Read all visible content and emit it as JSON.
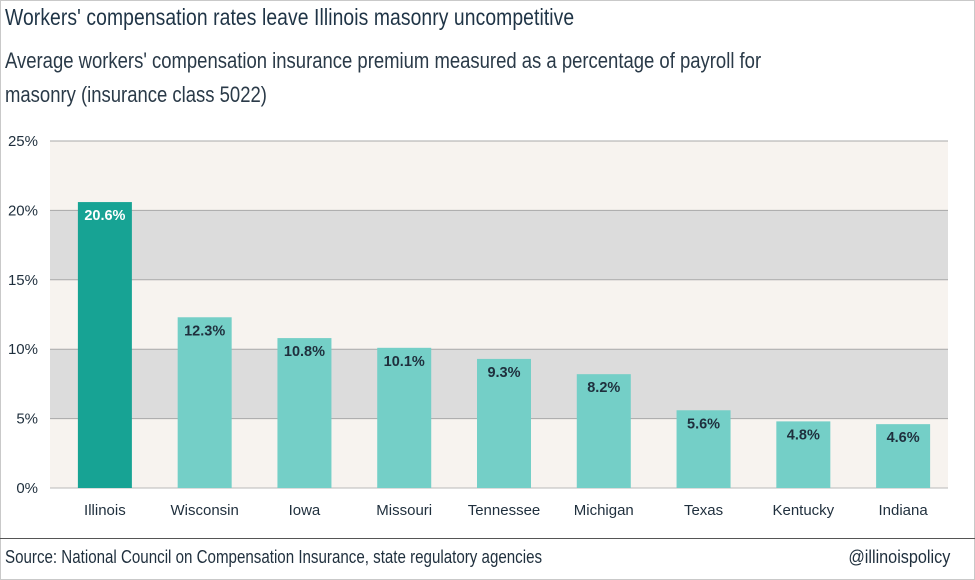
{
  "chart_data": {
    "type": "bar",
    "title": "Workers' compensation rates leave Illinois masonry uncompetitive",
    "subtitle_lines": [
      "Average workers' compensation insurance premium measured as a percentage of payroll for",
      "masonry (insurance class 5022)"
    ],
    "categories": [
      "Illinois",
      "Wisconsin",
      "Iowa",
      "Missouri",
      "Tennessee",
      "Michigan",
      "Texas",
      "Kentucky",
      "Indiana"
    ],
    "values": [
      20.6,
      12.3,
      10.8,
      10.1,
      9.3,
      8.2,
      5.6,
      4.8,
      4.6
    ],
    "value_labels": [
      "20.6%",
      "12.3%",
      "10.8%",
      "10.1%",
      "9.3%",
      "8.2%",
      "5.6%",
      "4.8%",
      "4.6%"
    ],
    "ylim": [
      0,
      25
    ],
    "yticks": [
      0,
      5,
      10,
      15,
      20,
      25
    ],
    "ytick_labels": [
      "0%",
      "5%",
      "10%",
      "15%",
      "20%",
      "25%"
    ],
    "grid": true,
    "colors": {
      "highlight": "#17a394",
      "bar": "#74cfc7",
      "band_dark": "#dcdcdc",
      "band_light": "#f7f3ef",
      "highlight_label": "#ffffff",
      "bar_label": "#1f2f3d"
    },
    "highlight_index": 0
  },
  "footer": {
    "source": "Source: National Council on Compensation Insurance, state regulatory agencies",
    "handle": "@illinoispolicy"
  }
}
